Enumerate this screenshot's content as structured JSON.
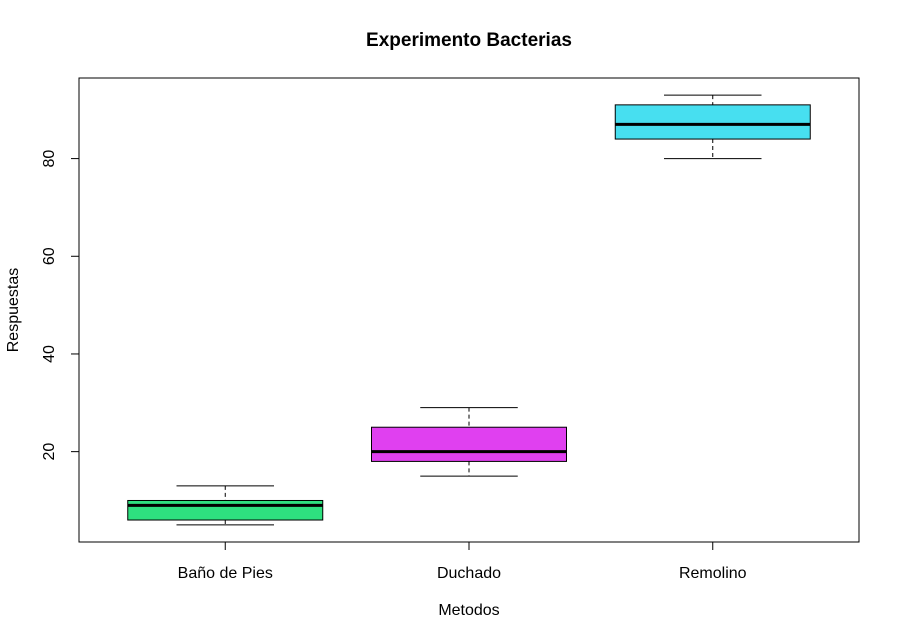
{
  "chart_data": {
    "type": "boxplot",
    "title": "Experimento Bacterias",
    "xlabel": "Metodos",
    "ylabel": "Respuestas",
    "ylim": [
      1.5,
      96.5
    ],
    "yticks": [
      20,
      40,
      60,
      80
    ],
    "grid": false,
    "categories": [
      "Baño de Pies",
      "Duchado",
      "Remolino"
    ],
    "boxes": [
      {
        "category": "Baño de Pies",
        "min": 5,
        "q1": 6,
        "median": 9,
        "q3": 10,
        "max": 13,
        "color": "#2ee07f"
      },
      {
        "category": "Duchado",
        "min": 15,
        "q1": 18,
        "median": 20,
        "q3": 25,
        "max": 29,
        "color": "#e040f0"
      },
      {
        "category": "Remolino",
        "min": 80,
        "q1": 84,
        "median": 87,
        "q3": 91,
        "max": 93,
        "color": "#47dff0"
      }
    ]
  }
}
